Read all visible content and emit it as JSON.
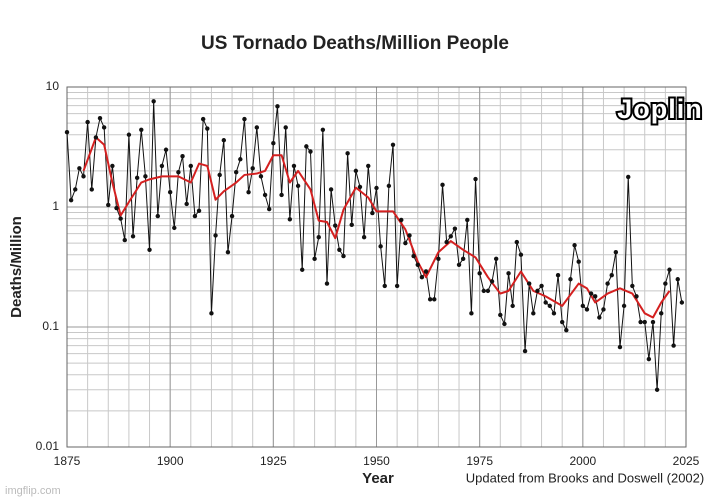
{
  "chart_data": {
    "type": "line",
    "title": "US Tornado Deaths/Million People",
    "x_label": "Year",
    "y_label": "Deaths/Million",
    "note": "Updated from Brooks and Doswell (2002)",
    "annotation": "Joplin",
    "watermark": "imgflip.com",
    "xlim": [
      1875,
      2025
    ],
    "xticks": [
      1875,
      1900,
      1925,
      1950,
      1975,
      2000,
      2025
    ],
    "ylim": [
      0.01,
      10
    ],
    "yticks": [
      0.01,
      0.1,
      1,
      10
    ],
    "log_y": true,
    "grid": true,
    "series": [
      {
        "color": "#111111",
        "markers": true,
        "x": [
          1875,
          1876,
          1877,
          1878,
          1879,
          1880,
          1881,
          1882,
          1883,
          1884,
          1885,
          1886,
          1887,
          1888,
          1889,
          1890,
          1891,
          1892,
          1893,
          1894,
          1895,
          1896,
          1897,
          1898,
          1899,
          1900,
          1901,
          1902,
          1903,
          1904,
          1905,
          1906,
          1907,
          1908,
          1909,
          1910,
          1911,
          1912,
          1913,
          1914,
          1915,
          1916,
          1917,
          1918,
          1919,
          1920,
          1921,
          1922,
          1923,
          1924,
          1925,
          1926,
          1927,
          1928,
          1929,
          1930,
          1931,
          1932,
          1933,
          1934,
          1935,
          1936,
          1937,
          1938,
          1939,
          1940,
          1941,
          1942,
          1943,
          1944,
          1945,
          1946,
          1947,
          1948,
          1949,
          1950,
          1951,
          1952,
          1953,
          1954,
          1955,
          1956,
          1957,
          1958,
          1959,
          1960,
          1961,
          1962,
          1963,
          1964,
          1965,
          1966,
          1967,
          1968,
          1969,
          1970,
          1971,
          1972,
          1973,
          1974,
          1975,
          1976,
          1977,
          1978,
          1979,
          1980,
          1981,
          1982,
          1983,
          1984,
          1985,
          1986,
          1987,
          1988,
          1989,
          1990,
          1991,
          1992,
          1993,
          1994,
          1995,
          1996,
          1997,
          1998,
          1999,
          2000,
          2001,
          2002,
          2003,
          2004,
          2005,
          2006,
          2007,
          2008,
          2009,
          2010,
          2011,
          2012,
          2013,
          2014,
          2015,
          2016,
          2017,
          2018,
          2019,
          2020,
          2021,
          2022,
          2023,
          2024
        ],
        "values": [
          4.2,
          1.14,
          1.4,
          2.1,
          1.8,
          5.1,
          1.4,
          3.8,
          5.5,
          4.6,
          1.04,
          2.2,
          0.98,
          0.8,
          0.53,
          4.0,
          0.57,
          1.75,
          4.4,
          1.8,
          0.44,
          7.6,
          0.84,
          2.2,
          3.0,
          1.33,
          0.67,
          1.95,
          2.65,
          1.06,
          2.2,
          0.84,
          0.93,
          5.4,
          4.5,
          0.13,
          0.58,
          1.85,
          3.6,
          0.42,
          0.84,
          1.95,
          2.5,
          5.4,
          1.33,
          2.1,
          4.6,
          1.8,
          1.26,
          0.96,
          3.4,
          6.9,
          1.26,
          4.6,
          0.79,
          2.2,
          1.5,
          0.3,
          3.2,
          2.9,
          0.37,
          0.56,
          4.4,
          0.23,
          1.4,
          0.7,
          0.44,
          0.39,
          2.8,
          0.71,
          2.0,
          1.47,
          0.56,
          2.2,
          0.89,
          1.44,
          0.47,
          0.22,
          1.5,
          3.3,
          0.22,
          0.78,
          0.5,
          0.58,
          0.39,
          0.33,
          0.26,
          0.29,
          0.17,
          0.17,
          0.37,
          1.53,
          0.51,
          0.57,
          0.66,
          0.33,
          0.37,
          0.78,
          0.13,
          1.71,
          0.28,
          0.2,
          0.2,
          0.24,
          0.37,
          0.126,
          0.106,
          0.28,
          0.15,
          0.51,
          0.4,
          0.063,
          0.23,
          0.13,
          0.2,
          0.22,
          0.16,
          0.15,
          0.13,
          0.27,
          0.11,
          0.094,
          0.25,
          0.48,
          0.35,
          0.15,
          0.14,
          0.19,
          0.18,
          0.12,
          0.14,
          0.23,
          0.27,
          0.42,
          0.068,
          0.15,
          1.78,
          0.22,
          0.18,
          0.11,
          0.11,
          0.054,
          0.11,
          0.03,
          0.13,
          0.23,
          0.3,
          0.07,
          0.25,
          0.16
        ]
      },
      {
        "color": "#d42020",
        "markers": false,
        "x": [
          1879,
          1882,
          1884,
          1886,
          1888,
          1890,
          1893,
          1895,
          1898,
          1902,
          1905,
          1907,
          1909,
          1911,
          1913,
          1916,
          1918,
          1921,
          1923,
          1925,
          1927,
          1929,
          1931,
          1934,
          1936,
          1938,
          1940,
          1942,
          1945,
          1948,
          1950,
          1952,
          1954,
          1957,
          1960,
          1962,
          1965,
          1968,
          1971,
          1974,
          1977,
          1980,
          1982,
          1985,
          1988,
          1991,
          1995,
          1999,
          2001,
          2003,
          2006,
          2009,
          2012,
          2015,
          2017,
          2019,
          2021
        ],
        "values": [
          2.0,
          3.8,
          3.3,
          1.6,
          0.85,
          1.1,
          1.6,
          1.7,
          1.8,
          1.8,
          1.6,
          2.3,
          2.2,
          1.15,
          1.35,
          1.6,
          1.85,
          1.9,
          2.0,
          2.7,
          2.7,
          1.6,
          2.0,
          1.4,
          0.77,
          0.75,
          0.55,
          0.95,
          1.45,
          1.2,
          0.92,
          0.92,
          0.92,
          0.65,
          0.35,
          0.26,
          0.42,
          0.52,
          0.44,
          0.38,
          0.26,
          0.19,
          0.2,
          0.29,
          0.2,
          0.18,
          0.15,
          0.23,
          0.21,
          0.16,
          0.19,
          0.21,
          0.19,
          0.13,
          0.12,
          0.16,
          0.2
        ]
      }
    ]
  }
}
